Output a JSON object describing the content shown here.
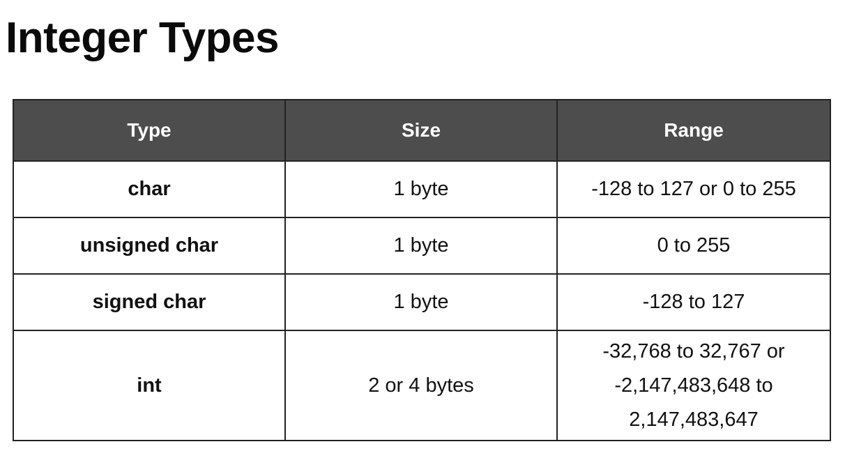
{
  "title": "Integer Types",
  "table": {
    "headers": [
      "Type",
      "Size",
      "Range"
    ],
    "rows": [
      {
        "type": "char",
        "size": "1 byte",
        "range": [
          "-128 to 127 or 0 to 255"
        ]
      },
      {
        "type": "unsigned char",
        "size": "1 byte",
        "range": [
          "0 to 255"
        ]
      },
      {
        "type": "signed char",
        "size": "1 byte",
        "range": [
          "-128 to 127"
        ]
      },
      {
        "type": "int",
        "size": "2 or 4 bytes",
        "range": [
          "-32,768 to 32,767 or",
          "-2,147,483,648 to",
          "2,147,483,647"
        ]
      }
    ]
  },
  "colors": {
    "header_background": "#4d4d4d",
    "header_text": "#ffffff",
    "border": "#222222"
  }
}
